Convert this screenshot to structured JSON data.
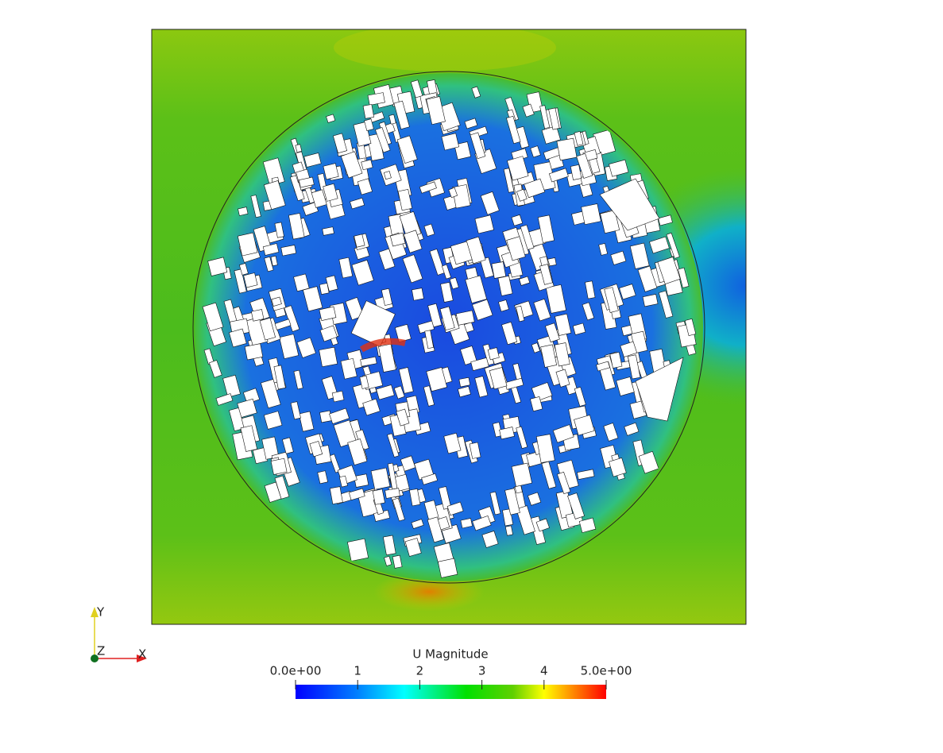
{
  "axes": {
    "x": "X",
    "y": "Y",
    "z": "Z"
  },
  "colorbar": {
    "title": "U Magnitude",
    "range": [
      0,
      5
    ],
    "ticks": [
      {
        "value": 0,
        "label": "0.0e+00"
      },
      1,
      2,
      3,
      4,
      {
        "value": 5,
        "label": "5.0e+00"
      }
    ]
  }
}
